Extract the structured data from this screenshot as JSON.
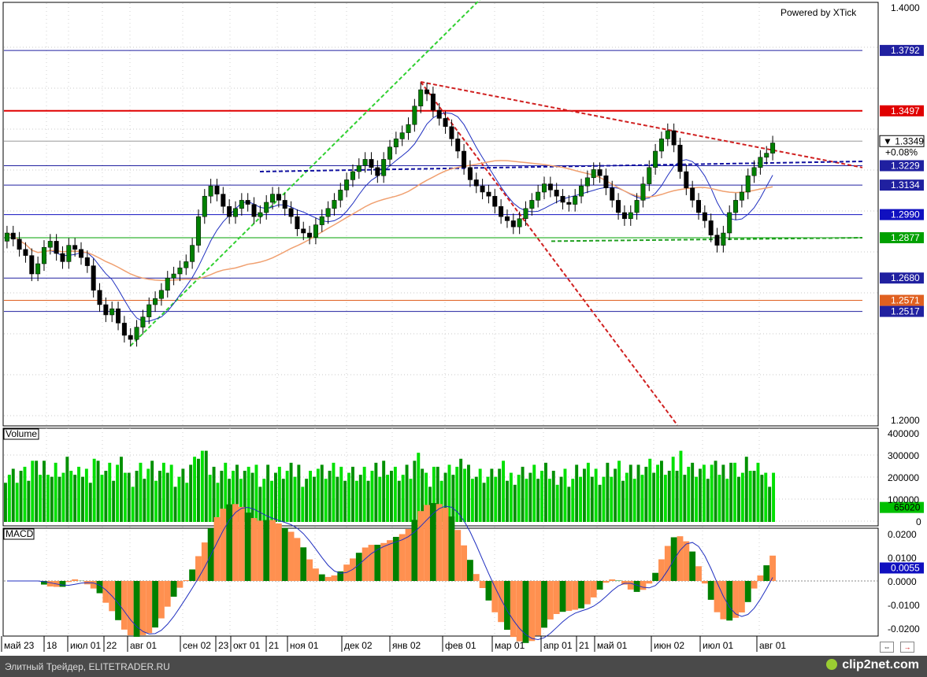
{
  "watermark": "Powered by XTick",
  "footer": {
    "credit": "Элитный Трейдер, ELITETRADER.RU",
    "logo": "clip2net.com"
  },
  "chart_data": [
    {
      "type": "candlestick",
      "name": "price",
      "ylim": [
        1.2,
        1.4
      ],
      "y_ticks": [
        "1.4000",
        "1.2000"
      ],
      "x_ticks": [
        "май 23",
        "18",
        "июл 01",
        "22",
        "авг 01",
        "сен 02",
        "23",
        "окт 01",
        "21",
        "ноя 01",
        "дек 02",
        "янв 02",
        "фев 01",
        "мар 01",
        "апр 01",
        "21",
        "май 01",
        "июн 02",
        "июл 01",
        "авг 01"
      ],
      "close": [
        1.29,
        1.287,
        1.282,
        1.279,
        1.27,
        1.275,
        1.283,
        1.286,
        1.28,
        1.276,
        1.284,
        1.282,
        1.278,
        1.274,
        1.262,
        1.255,
        1.25,
        1.253,
        1.246,
        1.24,
        1.238,
        1.244,
        1.249,
        1.255,
        1.258,
        1.262,
        1.268,
        1.27,
        1.273,
        1.276,
        1.284,
        1.298,
        1.308,
        1.313,
        1.309,
        1.303,
        1.298,
        1.302,
        1.306,
        1.304,
        1.298,
        1.3,
        1.305,
        1.309,
        1.306,
        1.302,
        1.298,
        1.292,
        1.29,
        1.288,
        1.294,
        1.298,
        1.302,
        1.306,
        1.311,
        1.316,
        1.32,
        1.323,
        1.326,
        1.322,
        1.318,
        1.326,
        1.332,
        1.336,
        1.339,
        1.343,
        1.352,
        1.36,
        1.358,
        1.35,
        1.346,
        1.342,
        1.336,
        1.33,
        1.322,
        1.316,
        1.313,
        1.31,
        1.308,
        1.303,
        1.298,
        1.296,
        1.293,
        1.297,
        1.302,
        1.306,
        1.31,
        1.314,
        1.311,
        1.308,
        1.305,
        1.304,
        1.308,
        1.313,
        1.317,
        1.321,
        1.318,
        1.312,
        1.306,
        1.3,
        1.297,
        1.3,
        1.306,
        1.314,
        1.322,
        1.33,
        1.336,
        1.34,
        1.333,
        1.32,
        1.312,
        1.306,
        1.3,
        1.296,
        1.289,
        1.284,
        1.29,
        1.3,
        1.306,
        1.31,
        1.318,
        1.322,
        1.327,
        1.329,
        1.334
      ],
      "open": [
        1.286,
        1.29,
        1.287,
        1.282,
        1.279,
        1.27,
        1.275,
        1.283,
        1.286,
        1.28,
        1.276,
        1.284,
        1.282,
        1.278,
        1.274,
        1.262,
        1.255,
        1.25,
        1.253,
        1.246,
        1.24,
        1.238,
        1.244,
        1.249,
        1.255,
        1.258,
        1.262,
        1.268,
        1.27,
        1.273,
        1.276,
        1.284,
        1.298,
        1.308,
        1.313,
        1.309,
        1.303,
        1.298,
        1.302,
        1.306,
        1.304,
        1.298,
        1.3,
        1.305,
        1.309,
        1.306,
        1.302,
        1.298,
        1.292,
        1.29,
        1.288,
        1.294,
        1.298,
        1.302,
        1.306,
        1.311,
        1.316,
        1.32,
        1.323,
        1.326,
        1.322,
        1.318,
        1.326,
        1.332,
        1.336,
        1.339,
        1.343,
        1.352,
        1.36,
        1.358,
        1.35,
        1.346,
        1.342,
        1.336,
        1.33,
        1.322,
        1.316,
        1.313,
        1.31,
        1.308,
        1.303,
        1.298,
        1.296,
        1.293,
        1.297,
        1.302,
        1.306,
        1.31,
        1.314,
        1.311,
        1.308,
        1.305,
        1.304,
        1.308,
        1.313,
        1.317,
        1.321,
        1.318,
        1.312,
        1.306,
        1.3,
        1.297,
        1.3,
        1.306,
        1.314,
        1.322,
        1.33,
        1.336,
        1.34,
        1.333,
        1.32,
        1.312,
        1.306,
        1.3,
        1.296,
        1.289,
        1.284,
        1.29,
        1.3,
        1.306,
        1.31,
        1.318,
        1.322,
        1.327,
        1.329
      ],
      "levels": [
        {
          "value": 1.3792,
          "label": "1.3792",
          "color": "#2020a0"
        },
        {
          "value": 1.3497,
          "label": "1.3497",
          "color": "#e00000"
        },
        {
          "value": 1.3229,
          "label": "1.3229",
          "color": "#2020a0"
        },
        {
          "value": 1.3134,
          "label": "1.3134",
          "color": "#2020a0"
        },
        {
          "value": 1.299,
          "label": "1.2990",
          "color": "#1010c0"
        },
        {
          "value": 1.2877,
          "label": "1.2877",
          "color": "#00a000"
        },
        {
          "value": 1.268,
          "label": "1.2680",
          "color": "#2020a0"
        },
        {
          "value": 1.2571,
          "label": "1.2571",
          "color": "#e06020"
        },
        {
          "value": 1.2517,
          "label": "1.2517",
          "color": "#2020a0"
        }
      ],
      "last_price": "1.3349",
      "change": "+0.08%"
    },
    {
      "type": "bar",
      "name": "Volume",
      "ylim": [
        0,
        400000
      ],
      "y_ticks": [
        "400000",
        "300000",
        "200000",
        "100000",
        "0"
      ],
      "last_value": "65020"
    },
    {
      "type": "histogram",
      "name": "MACD",
      "ylim": [
        -0.02,
        0.02
      ],
      "y_ticks": [
        "0.0200",
        "0.0100",
        "0.0000",
        "-0.0100",
        "-0.0200"
      ],
      "last_value": "0.0055"
    }
  ],
  "colors": {
    "bull": "#008000",
    "bear": "#000000",
    "vol_up": "#00e000",
    "vol_dn": "#009000",
    "macd_pos": "#ff9050",
    "macd_neg": "#008000"
  }
}
